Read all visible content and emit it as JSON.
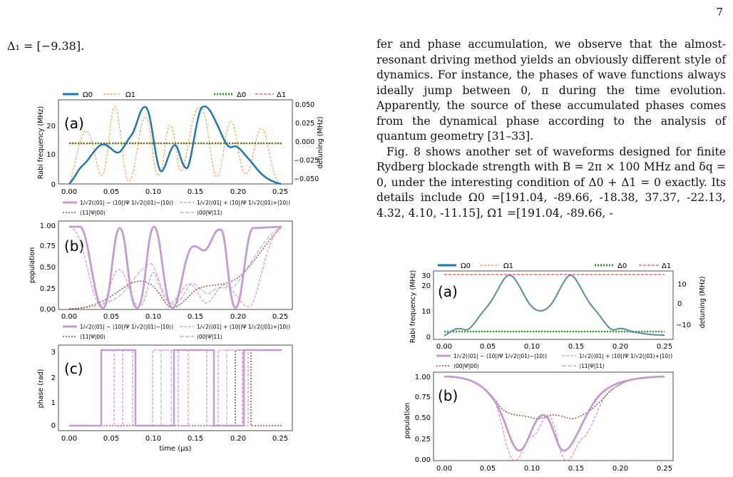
{
  "page_number": "7",
  "left_eq": "Δ₁ = [−9.38].",
  "paragraphs": [
    "fer and phase accumulation, we observe that the almost-resonant driving method yields an obviously different style of dynamics. For instance, the phases of wave functions always ideally jump between 0, π during the time evolution. Apparently, the source of these accumulated phases comes from the dynamical phase according to the analysis of quantum geometry [31–33].",
    "Fig. 8 shows another set of waveforms designed for finite Rydberg blockade strength with B = 2π × 100 MHz and δq = 0, under the interesting condition of Δ0 + Δ1 = 0 exactly. Its details include Ω0 =[191.04, -89.66, -18.38, 37.37, -22.13, 4.32, 4.10, -11.15], Ω1 =[191.04, -89.66, -"
  ],
  "colors": {
    "omega0": "#1f77b4",
    "omega1": "#ff7f0e",
    "delta0": "#2ca02c",
    "delta1": "#d62728",
    "lilac": "#c39bd3",
    "pink": "#e377c2",
    "brown": "#8c564b",
    "grey": "#999999"
  },
  "fig7": {
    "legend_top": [
      "Ω0",
      "Ω1",
      "Δ0",
      "Δ1"
    ],
    "panel_a": {
      "label": "(a)",
      "ylabel": "Rabi frequency (MHz)",
      "y2label": "detuning (MHz)",
      "yticks": [
        "0",
        "10",
        "20"
      ],
      "y2ticks": [
        "0.050",
        "0.025",
        "0.000",
        "−0.025",
        "−0.050"
      ]
    },
    "panel_b": {
      "label": "(b)",
      "ylabel": "population",
      "yticks": [
        "0.00",
        "0.25",
        "0.50",
        "0.75",
        "1.00"
      ]
    },
    "panel_c": {
      "label": "(c)",
      "ylabel": "phase (rad)",
      "xlabel": "time (μs)",
      "yticks": [
        "0",
        "1",
        "2",
        "3"
      ]
    },
    "xticks": [
      "0.00",
      "0.05",
      "0.10",
      "0.15",
      "0.20",
      "0.25"
    ],
    "legend_states": [
      "1/√2(⟨01| − ⟨10|)Ψ 1/√2(|01⟩−|10⟩)",
      "1/√2(⟨01| + ⟨10|)Ψ 1/√2(|01⟩+|10⟩)",
      "⟨11|Ψ|00⟩",
      "⟨00|Ψ|11⟩"
    ]
  },
  "fig8": {
    "legend_top": [
      "Ω0",
      "Ω1",
      "Δ0",
      "Δ1"
    ],
    "panel_a": {
      "label": "(a)",
      "ylabel": "Rabi frequency (MHz)",
      "y2label": "detuning (MHz)",
      "yticks": [
        "0",
        "10",
        "20",
        "30"
      ],
      "y2ticks": [
        "10",
        "0",
        "−10"
      ]
    },
    "panel_b": {
      "label": "(b)",
      "ylabel": "population",
      "yticks": [
        "0.00",
        "0.25",
        "0.50",
        "0.75",
        "1.00"
      ]
    },
    "xticks": [
      "0.00",
      "0.05",
      "0.10",
      "0.15",
      "0.20",
      "0.25"
    ],
    "legend_states": [
      "1/√2(⟨01| − ⟨10|)Ψ 1/√2(|01⟩−|10⟩)",
      "1/√2(⟨01| + ⟨10|)Ψ 1/√2(|01⟩+|10⟩)",
      "⟨00|Ψ|00⟩",
      "⟨11|Ψ|11⟩"
    ]
  }
}
